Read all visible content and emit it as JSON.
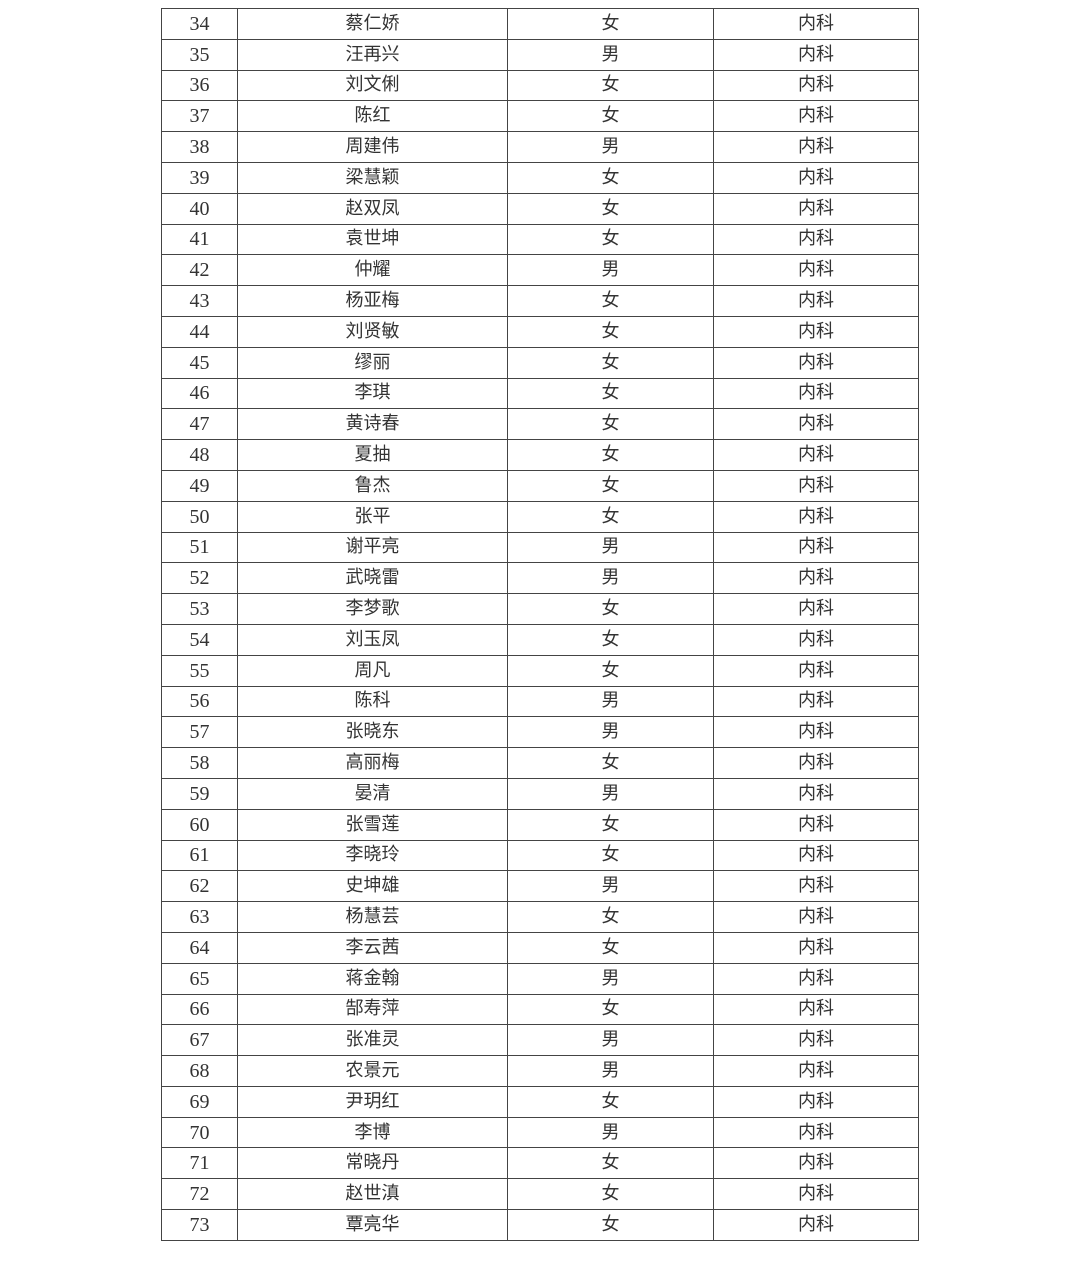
{
  "rows": [
    {
      "no": "34",
      "name": "蔡仁娇",
      "sex": "女",
      "dept": "内科"
    },
    {
      "no": "35",
      "name": "汪再兴",
      "sex": "男",
      "dept": "内科"
    },
    {
      "no": "36",
      "name": "刘文俐",
      "sex": "女",
      "dept": "内科"
    },
    {
      "no": "37",
      "name": "陈红",
      "sex": "女",
      "dept": "内科"
    },
    {
      "no": "38",
      "name": "周建伟",
      "sex": "男",
      "dept": "内科"
    },
    {
      "no": "39",
      "name": "梁慧颖",
      "sex": "女",
      "dept": "内科"
    },
    {
      "no": "40",
      "name": "赵双凤",
      "sex": "女",
      "dept": "内科"
    },
    {
      "no": "41",
      "name": "袁世坤",
      "sex": "女",
      "dept": "内科"
    },
    {
      "no": "42",
      "name": "仲耀",
      "sex": "男",
      "dept": "内科"
    },
    {
      "no": "43",
      "name": "杨亚梅",
      "sex": "女",
      "dept": "内科"
    },
    {
      "no": "44",
      "name": "刘贤敏",
      "sex": "女",
      "dept": "内科"
    },
    {
      "no": "45",
      "name": "缪丽",
      "sex": "女",
      "dept": "内科"
    },
    {
      "no": "46",
      "name": "李琪",
      "sex": "女",
      "dept": "内科"
    },
    {
      "no": "47",
      "name": "黄诗春",
      "sex": "女",
      "dept": "内科"
    },
    {
      "no": "48",
      "name": "夏抽",
      "sex": "女",
      "dept": "内科"
    },
    {
      "no": "49",
      "name": "鲁杰",
      "sex": "女",
      "dept": "内科"
    },
    {
      "no": "50",
      "name": "张平",
      "sex": "女",
      "dept": "内科"
    },
    {
      "no": "51",
      "name": "谢平亮",
      "sex": "男",
      "dept": "内科"
    },
    {
      "no": "52",
      "name": "武晓雷",
      "sex": "男",
      "dept": "内科"
    },
    {
      "no": "53",
      "name": "李梦歌",
      "sex": "女",
      "dept": "内科"
    },
    {
      "no": "54",
      "name": "刘玉凤",
      "sex": "女",
      "dept": "内科"
    },
    {
      "no": "55",
      "name": "周凡",
      "sex": "女",
      "dept": "内科"
    },
    {
      "no": "56",
      "name": "陈科",
      "sex": "男",
      "dept": "内科"
    },
    {
      "no": "57",
      "name": "张晓东",
      "sex": "男",
      "dept": "内科"
    },
    {
      "no": "58",
      "name": "高丽梅",
      "sex": "女",
      "dept": "内科"
    },
    {
      "no": "59",
      "name": "晏清",
      "sex": "男",
      "dept": "内科"
    },
    {
      "no": "60",
      "name": "张雪莲",
      "sex": "女",
      "dept": "内科"
    },
    {
      "no": "61",
      "name": "李晓玲",
      "sex": "女",
      "dept": "内科"
    },
    {
      "no": "62",
      "name": "史坤雄",
      "sex": "男",
      "dept": "内科"
    },
    {
      "no": "63",
      "name": "杨慧芸",
      "sex": "女",
      "dept": "内科"
    },
    {
      "no": "64",
      "name": "李云茜",
      "sex": "女",
      "dept": "内科"
    },
    {
      "no": "65",
      "name": "蒋金翰",
      "sex": "男",
      "dept": "内科"
    },
    {
      "no": "66",
      "name": "郜寿萍",
      "sex": "女",
      "dept": "内科"
    },
    {
      "no": "67",
      "name": "张准灵",
      "sex": "男",
      "dept": "内科"
    },
    {
      "no": "68",
      "name": "农景元",
      "sex": "男",
      "dept": "内科"
    },
    {
      "no": "69",
      "name": "尹玥红",
      "sex": "女",
      "dept": "内科"
    },
    {
      "no": "70",
      "name": "李博",
      "sex": "男",
      "dept": "内科"
    },
    {
      "no": "71",
      "name": "常晓丹",
      "sex": "女",
      "dept": "内科"
    },
    {
      "no": "72",
      "name": "赵世滇",
      "sex": "女",
      "dept": "内科"
    },
    {
      "no": "73",
      "name": "覃亮华",
      "sex": "女",
      "dept": "内科"
    }
  ]
}
